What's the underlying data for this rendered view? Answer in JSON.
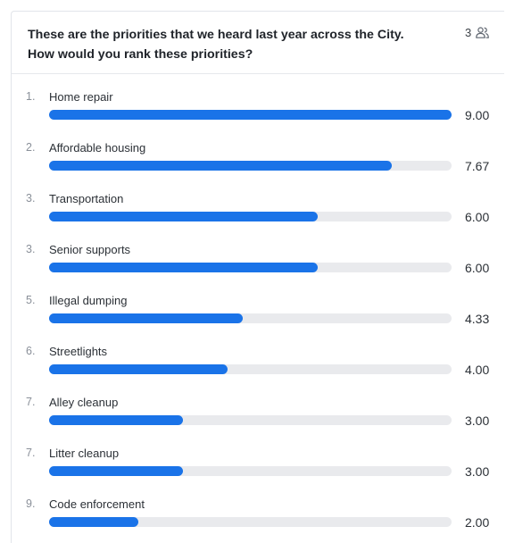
{
  "question": {
    "line1": "These are the priorities that we heard last year across the City.",
    "line2": "How would you rank these priorities?"
  },
  "respondents": {
    "count": "3",
    "icon": "people-icon"
  },
  "colors": {
    "bar_fill": "#1a73e8",
    "bar_track": "#e9eaed"
  },
  "chart_data": {
    "type": "bar",
    "orientation": "horizontal",
    "xlim": [
      0,
      9
    ],
    "items": [
      {
        "rank": "1.",
        "label": "Home repair",
        "value": 9.0,
        "value_label": "9.00"
      },
      {
        "rank": "2.",
        "label": "Affordable housing",
        "value": 7.67,
        "value_label": "7.67"
      },
      {
        "rank": "3.",
        "label": "Transportation",
        "value": 6.0,
        "value_label": "6.00"
      },
      {
        "rank": "3.",
        "label": "Senior supports",
        "value": 6.0,
        "value_label": "6.00"
      },
      {
        "rank": "5.",
        "label": "Illegal dumping",
        "value": 4.33,
        "value_label": "4.33"
      },
      {
        "rank": "6.",
        "label": "Streetlights",
        "value": 4.0,
        "value_label": "4.00"
      },
      {
        "rank": "7.",
        "label": "Alley cleanup",
        "value": 3.0,
        "value_label": "3.00"
      },
      {
        "rank": "7.",
        "label": "Litter cleanup",
        "value": 3.0,
        "value_label": "3.00"
      },
      {
        "rank": "9.",
        "label": "Code enforcement",
        "value": 2.0,
        "value_label": "2.00"
      }
    ]
  }
}
